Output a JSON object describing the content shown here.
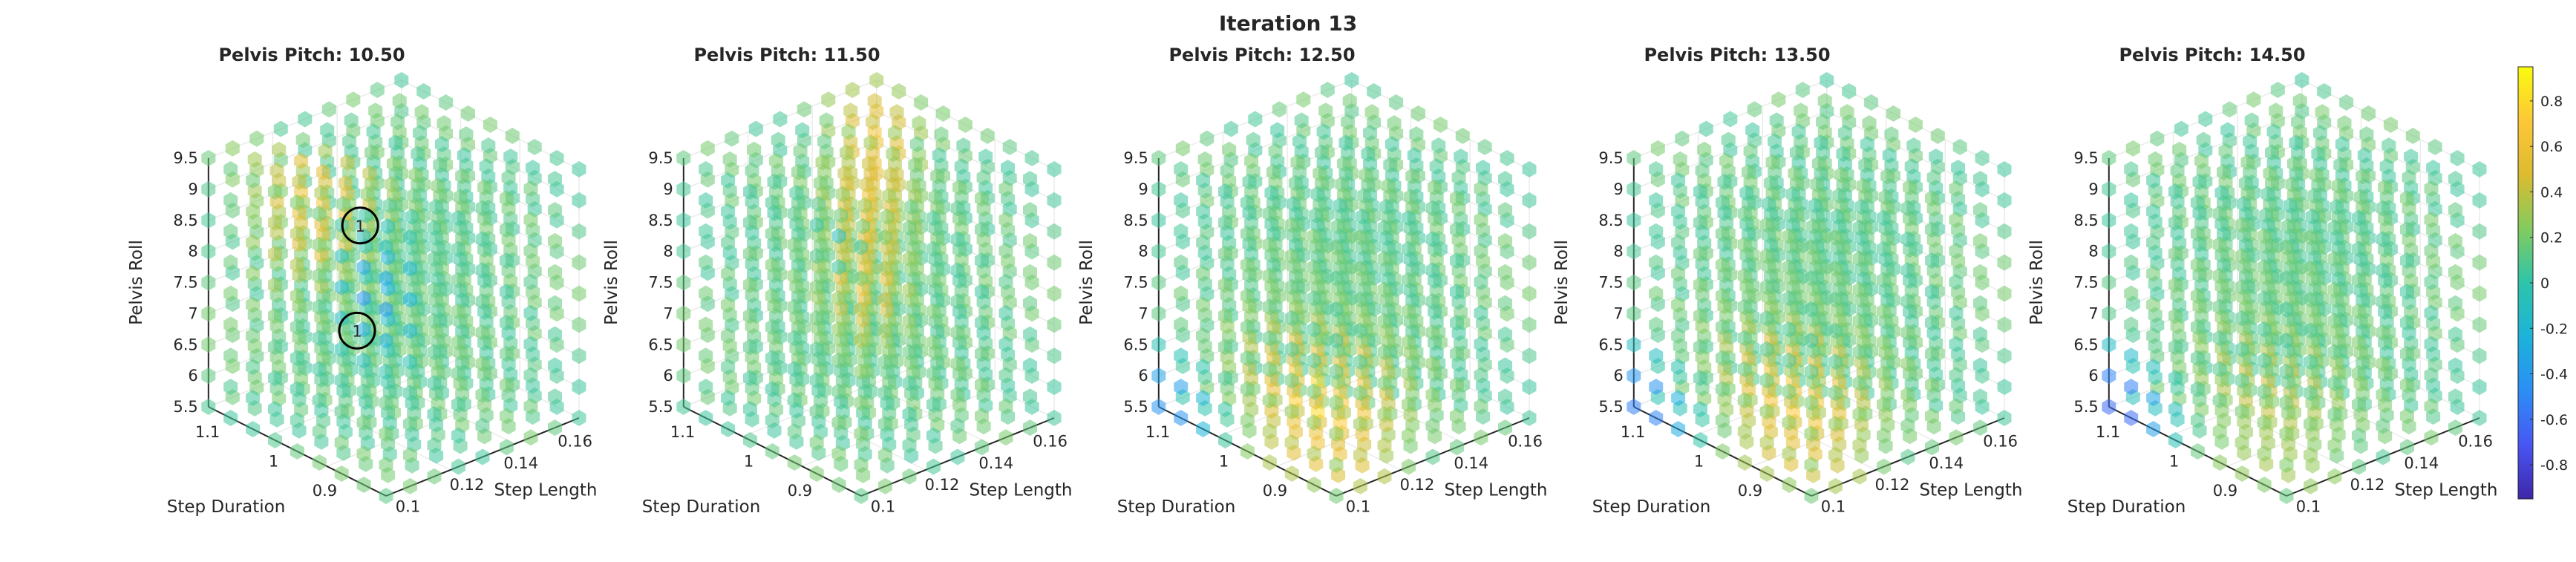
{
  "chart_data": {
    "type": "scatter",
    "title": "Iteration 13",
    "panel_title_prefix": "Pelvis Pitch: ",
    "panels": [
      {
        "title": "Pelvis Pitch: 10.50",
        "pelvis_pitch": 10.5,
        "hot_region": "upper-left",
        "marked_points": [
          {
            "label": "1"
          },
          {
            "label": "1"
          }
        ]
      },
      {
        "title": "Pelvis Pitch: 11.50",
        "pelvis_pitch": 11.5,
        "hot_region": "upper-diagonal"
      },
      {
        "title": "Pelvis Pitch: 12.50",
        "pelvis_pitch": 12.5,
        "hot_region": "lower-left"
      },
      {
        "title": "Pelvis Pitch: 13.50",
        "pelvis_pitch": 13.5,
        "hot_region": "lower-left"
      },
      {
        "title": "Pelvis Pitch: 14.50",
        "pelvis_pitch": 14.5,
        "hot_region": "lower-left"
      }
    ],
    "axes": {
      "x": {
        "label": "Step Length",
        "ticks": [
          "0.1",
          "0.12",
          "0.14",
          "0.16"
        ]
      },
      "y": {
        "label": "Step Duration",
        "ticks": [
          "0.9",
          "1",
          "1.1"
        ]
      },
      "z": {
        "label": "Pelvis Roll",
        "ticks": [
          "5.5",
          "6",
          "6.5",
          "7",
          "7.5",
          "8",
          "8.5",
          "9",
          "9.5"
        ]
      }
    },
    "grid": true,
    "colorbar": {
      "ticks": [
        "0.8",
        "0.6",
        "0.4",
        "0.2",
        "0",
        "-0.2",
        "-0.4",
        "-0.6",
        "-0.8"
      ],
      "range": [
        -0.95,
        0.95
      ],
      "colormap": "parula",
      "colors": [
        "#3e26a8",
        "#4856f4",
        "#2c8ef5",
        "#1cb3da",
        "#2ec4aa",
        "#82cb5e",
        "#dcbb30",
        "#fdc737",
        "#f9fb0e"
      ]
    },
    "marker_color_base": "#48c9c4"
  }
}
